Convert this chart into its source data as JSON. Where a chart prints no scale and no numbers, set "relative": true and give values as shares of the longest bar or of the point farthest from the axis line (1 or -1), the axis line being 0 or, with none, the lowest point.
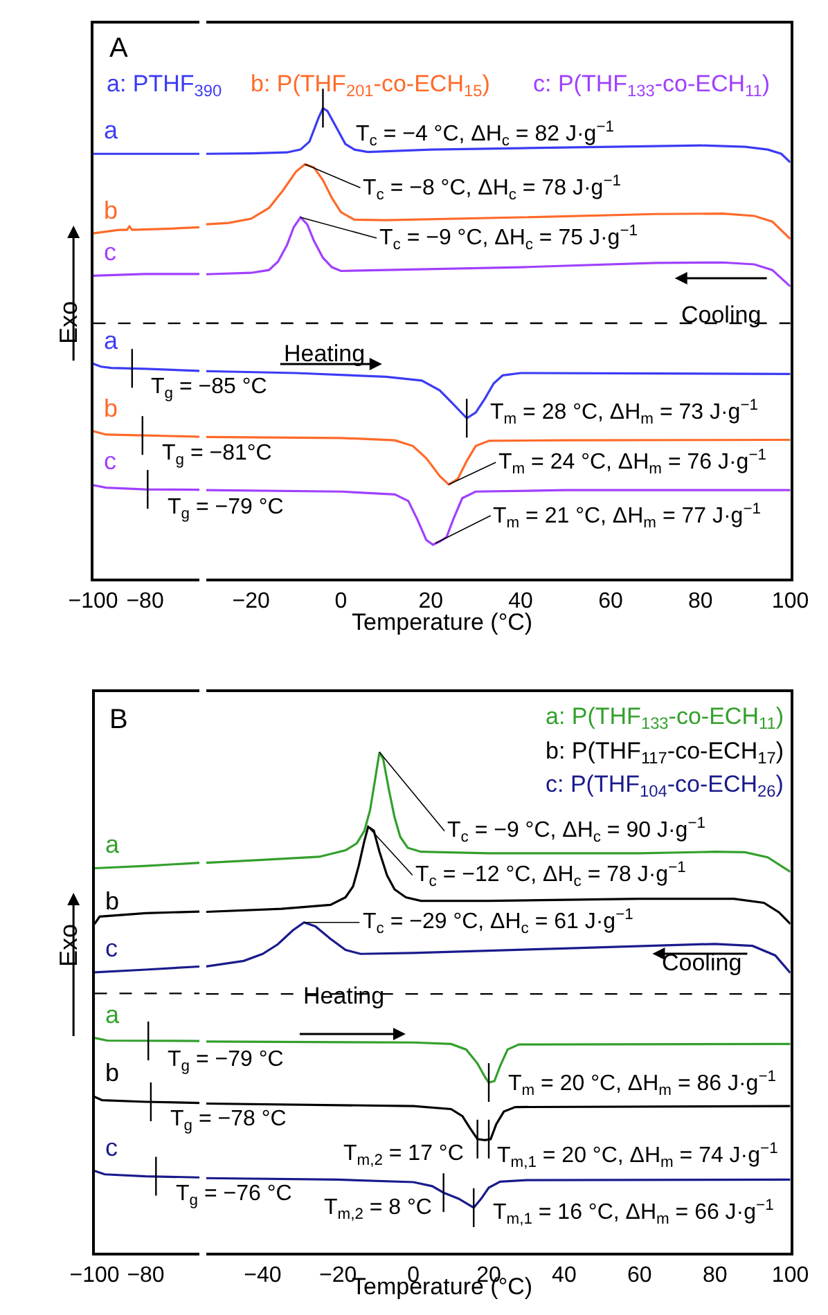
{
  "chart_data": [
    {
      "type": "line",
      "relative": true,
      "title": "A",
      "ylabel": "Exo",
      "xlim": [
        -100,
        -59
      ],
      "xticks": [
        -100,
        -80
      ],
      "tick_labels": "x",
      "ref_lines": [
        {
          "axis": "y",
          "value": 0.601,
          "color": "#000000",
          "line_style": "dashed"
        }
      ],
      "series": [
        {
          "name": "a",
          "color": "#3b3bf5",
          "x": [
            -100,
            -80,
            -59
          ],
          "values": [
            1.0,
            1.0,
            1.0
          ]
        },
        {
          "name": "b",
          "color": "#ff6a2a",
          "x": [
            -100,
            -90,
            -87,
            -86,
            -85,
            -70,
            -59
          ],
          "values": [
            0.813,
            0.821,
            0.821,
            0.829,
            0.821,
            0.824,
            0.827
          ]
        },
        {
          "name": "c",
          "color": "#a040ff",
          "x": [
            -100,
            -80,
            -59
          ],
          "values": [
            0.713,
            0.717,
            0.717
          ]
        },
        {
          "name": "a",
          "color": "#3b3bf5",
          "x": [
            -100,
            -97,
            -93,
            -80,
            -59
          ],
          "values": [
            0.506,
            0.499,
            0.496,
            0.494,
            0.489
          ]
        },
        {
          "name": "b",
          "color": "#ff6a2a",
          "x": [
            -100,
            -95,
            -80,
            -59
          ],
          "values": [
            0.347,
            0.339,
            0.337,
            0.334
          ]
        },
        {
          "name": "c",
          "color": "#a040ff",
          "x": [
            -100,
            -95,
            -80,
            -59
          ],
          "values": [
            0.22,
            0.214,
            0.21,
            0.209
          ]
        }
      ],
      "annotations": [
        {
          "text": "T$_{g}$ = −85 °C",
          "x": -85,
          "y": 0.495
        },
        {
          "text": "T$_{g}$ = −81°C",
          "x": -81,
          "y": 0.337
        },
        {
          "text": "T$_{g}$ = −79 °C",
          "x": -79,
          "y": 0.21
        }
      ]
    },
    {
      "type": "line",
      "relative": true,
      "xlabel": "Temperature (°C)",
      "xlim": [
        -30,
        100
      ],
      "xticks": [
        -20,
        0,
        20,
        40,
        60,
        80,
        100
      ],
      "tick_labels": "x",
      "ref_lines": [
        {
          "axis": "y",
          "value": 0.543,
          "color": "#000000",
          "line_style": "dashed"
        }
      ],
      "series": [
        {
          "color": "#3b3bf5",
          "x": [
            -30,
            -20,
            -12,
            -9,
            -7,
            -5,
            -4,
            -3,
            -1,
            1,
            3,
            6,
            20,
            40,
            60,
            80,
            90,
            95,
            98,
            100
          ],
          "values": [
            0.903,
            0.904,
            0.906,
            0.912,
            0.929,
            0.979,
            1.0,
            0.994,
            0.959,
            0.924,
            0.912,
            0.907,
            0.912,
            0.915,
            0.918,
            0.921,
            0.918,
            0.912,
            0.903,
            0.885
          ]
        },
        {
          "color": "#ff6a2a",
          "x": [
            -30,
            -25,
            -20,
            -16,
            -13,
            -10,
            -8,
            -6,
            -4,
            -2,
            0,
            3,
            10,
            40,
            70,
            85,
            92,
            96,
            100
          ],
          "values": [
            0.753,
            0.756,
            0.765,
            0.788,
            0.824,
            0.865,
            0.881,
            0.874,
            0.847,
            0.809,
            0.779,
            0.763,
            0.762,
            0.768,
            0.775,
            0.776,
            0.771,
            0.759,
            0.722
          ]
        },
        {
          "color": "#a040ff",
          "x": [
            -30,
            -20,
            -16,
            -14,
            -12,
            -10.5,
            -9,
            -7.5,
            -6,
            -4,
            -2,
            0,
            10,
            40,
            70,
            85,
            92,
            96,
            100
          ],
          "values": [
            0.647,
            0.65,
            0.656,
            0.674,
            0.709,
            0.747,
            0.768,
            0.753,
            0.718,
            0.682,
            0.662,
            0.654,
            0.656,
            0.662,
            0.671,
            0.672,
            0.668,
            0.656,
            0.621
          ]
        },
        {
          "color": "#3b3bf5",
          "x": [
            -30,
            -10,
            10,
            18,
            22,
            25,
            28,
            30,
            32,
            34,
            36,
            40,
            70,
            100
          ],
          "values": [
            0.441,
            0.437,
            0.429,
            0.421,
            0.4,
            0.371,
            0.341,
            0.353,
            0.382,
            0.415,
            0.432,
            0.437,
            0.436,
            0.435
          ]
        },
        {
          "color": "#ff6a2a",
          "x": [
            -30,
            0,
            12,
            16,
            19,
            22,
            24,
            26,
            28,
            30,
            33,
            50,
            100
          ],
          "values": [
            0.301,
            0.299,
            0.294,
            0.282,
            0.256,
            0.218,
            0.2,
            0.212,
            0.25,
            0.282,
            0.293,
            0.294,
            0.295
          ]
        },
        {
          "color": "#a040ff",
          "x": [
            -30,
            0,
            12,
            15,
            17,
            19,
            20.5,
            22,
            23.5,
            25,
            27,
            30,
            50,
            100
          ],
          "values": [
            0.188,
            0.185,
            0.179,
            0.165,
            0.126,
            0.082,
            0.072,
            0.079,
            0.088,
            0.126,
            0.171,
            0.185,
            0.188,
            0.188
          ]
        }
      ],
      "annotations": [
        "a: PTHF$_{390}$",
        "b: P(THF$_{201}$-co-ECH$_{15}$)",
        "c: P(THF$_{133}$-co-ECH$_{11}$)",
        "Cooling",
        "Heating",
        {
          "text": "T$_{c}$ = −4 °C, ΔH$_{c}$ = 82 J·g$^{−1}$",
          "x": -4,
          "y": 1.0
        },
        {
          "text": "T$_{c}$ = −8 °C, ΔH$_{c}$ = 78 J·g$^{−1}$",
          "x": -8,
          "y": 0.881
        },
        {
          "text": "T$_{c}$ = −9 °C, ΔH$_{c}$ = 75 J·g$^{−1}$",
          "x": -9,
          "y": 0.768
        },
        {
          "text": "T$_{m}$ = 28 °C, ΔH$_{m}$ = 73 J·g$^{−1}$",
          "x": 28,
          "y": 0.341
        },
        {
          "text": "T$_{m}$ = 24 °C, ΔH$_{m}$ = 76 J·g$^{−1}$",
          "x": 24,
          "y": 0.2
        },
        {
          "text": "T$_{m}$ = 21 °C, ΔH$_{m}$ = 77 J·g$^{−1}$",
          "x": 21,
          "y": 0.075
        }
      ]
    },
    {
      "type": "line",
      "relative": true,
      "title": "B",
      "ylabel": "Exo",
      "xlim": [
        -100,
        -59
      ],
      "xticks": [
        -100,
        -80
      ],
      "tick_labels": "x",
      "ref_lines": [
        {
          "axis": "y",
          "value": 0.665,
          "color": "#000000",
          "line_style": "dashed"
        }
      ],
      "series": [
        {
          "name": "a",
          "color": "#33a02c",
          "x": [
            -100,
            -80,
            -59
          ],
          "values": [
            0.986,
            0.992,
            1.0
          ]
        },
        {
          "name": "b",
          "color": "#000000",
          "x": [
            -100,
            -98,
            -80,
            -59
          ],
          "values": [
            0.843,
            0.862,
            0.871,
            0.875
          ]
        },
        {
          "name": "c",
          "color": "#1a1a8c",
          "x": [
            -100,
            -80,
            -59
          ],
          "values": [
            0.719,
            0.726,
            0.734
          ]
        },
        {
          "name": "a",
          "color": "#33a02c",
          "x": [
            -100,
            -95,
            -59
          ],
          "values": [
            0.551,
            0.544,
            0.543
          ]
        },
        {
          "name": "b",
          "color": "#000000",
          "x": [
            -100,
            -97,
            -80,
            -59
          ],
          "values": [
            0.4,
            0.391,
            0.387,
            0.384
          ]
        },
        {
          "name": "c",
          "color": "#1a1a8c",
          "x": [
            -100,
            -96,
            -80,
            -59
          ],
          "values": [
            0.21,
            0.201,
            0.196,
            0.193
          ]
        }
      ],
      "annotations": [
        {
          "text": "T$_{g}$ = −79 °C",
          "x": -79,
          "y": 0.543
        },
        {
          "text": "T$_{g}$ = −78 °C",
          "x": -78,
          "y": 0.387
        },
        {
          "text": "T$_{g}$ = −76 °C",
          "x": -76,
          "y": 0.196
        }
      ]
    },
    {
      "type": "line",
      "relative": true,
      "xlabel": "Temperature (°C)",
      "xlim": [
        -55,
        100
      ],
      "xticks": [
        -40,
        -20,
        0,
        20,
        40,
        60,
        80,
        100
      ],
      "tick_labels": "x",
      "ref_lines": [
        {
          "axis": "y",
          "value": 0.517,
          "color": "#000000",
          "line_style": "dashed"
        }
      ],
      "series": [
        {
          "color": "#33a02c",
          "x": [
            -55,
            -40,
            -25,
            -18,
            -15,
            -13,
            -11.5,
            -10,
            -9,
            -8,
            -6.5,
            -5,
            -3.5,
            -1.5,
            2,
            20,
            60,
            80,
            88,
            94,
            100
          ],
          "values": [
            0.779,
            0.785,
            0.791,
            0.804,
            0.818,
            0.843,
            0.884,
            0.953,
            1.0,
            0.986,
            0.925,
            0.87,
            0.831,
            0.809,
            0.801,
            0.798,
            0.798,
            0.801,
            0.8,
            0.79,
            0.761
          ]
        },
        {
          "color": "#000000",
          "x": [
            -55,
            -35,
            -22,
            -18,
            -16,
            -14.5,
            -13,
            -12,
            -10.5,
            -9,
            -7,
            -5,
            -2,
            2,
            20,
            60,
            85,
            93,
            97,
            100
          ],
          "values": [
            0.681,
            0.687,
            0.695,
            0.71,
            0.732,
            0.773,
            0.823,
            0.851,
            0.843,
            0.801,
            0.754,
            0.726,
            0.71,
            0.703,
            0.703,
            0.707,
            0.707,
            0.699,
            0.68,
            0.657
          ]
        },
        {
          "color": "#1a1a8c",
          "x": [
            -55,
            -45,
            -40,
            -36,
            -32,
            -29,
            -26,
            -22,
            -18,
            -14,
            0,
            40,
            80,
            90,
            96,
            100
          ],
          "values": [
            0.572,
            0.583,
            0.597,
            0.616,
            0.644,
            0.66,
            0.652,
            0.627,
            0.605,
            0.597,
            0.599,
            0.608,
            0.617,
            0.613,
            0.594,
            0.559
          ]
        },
        {
          "color": "#33a02c",
          "x": [
            -55,
            0,
            10,
            14,
            17,
            19,
            20,
            21.5,
            23,
            25,
            28,
            100
          ],
          "values": [
            0.422,
            0.42,
            0.417,
            0.406,
            0.378,
            0.351,
            0.34,
            0.343,
            0.373,
            0.406,
            0.416,
            0.417
          ]
        },
        {
          "color": "#000000",
          "x": [
            -55,
            0,
            10,
            13,
            15,
            17,
            19,
            20.5,
            22,
            24,
            27,
            100
          ],
          "values": [
            0.298,
            0.293,
            0.287,
            0.273,
            0.249,
            0.227,
            0.225,
            0.227,
            0.257,
            0.282,
            0.291,
            0.293
          ]
        },
        {
          "color": "#1a1a8c",
          "x": [
            -55,
            -20,
            0,
            5,
            8,
            12,
            16,
            18,
            20,
            23,
            30,
            100
          ],
          "values": [
            0.149,
            0.146,
            0.141,
            0.133,
            0.12,
            0.108,
            0.09,
            0.108,
            0.13,
            0.142,
            0.145,
            0.146
          ]
        }
      ],
      "annotations": [
        "a: P(THF$_{133}$-co-ECH$_{11}$)",
        "b: P(THF$_{117}$-co-ECH$_{17}$)",
        "c: P(THF$_{104}$-co-ECH$_{26}$)",
        "Cooling",
        "Heating",
        {
          "text": "T$_{c}$ = −9 °C, ΔH$_{c}$ = 90 J·g$^{−1}$",
          "x": -9,
          "y": 1.0
        },
        {
          "text": "T$_{c}$ = −12 °C, ΔH$_{c}$ = 78 J·g$^{−1}$",
          "x": -12,
          "y": 0.851
        },
        {
          "text": "T$_{c}$ = −29 °C, ΔH$_{c}$ = 61 J·g$^{−1}$",
          "x": -29,
          "y": 0.66
        },
        {
          "text": "T$_{m}$ = 20 °C, ΔH$_{m}$ = 86 J·g$^{−1}$",
          "x": 20,
          "y": 0.34
        },
        {
          "text": "T$_{m,2}$ = 17 °C",
          "x": 17,
          "y": 0.227
        },
        {
          "text": "T$_{m,1}$ = 20 °C, ΔH$_{m}$ = 74 J·g$^{−1}$",
          "x": 20,
          "y": 0.227
        },
        {
          "text": "T$_{m,2}$ = 8 °C",
          "x": 8,
          "y": 0.12
        },
        {
          "text": "T$_{m,1}$ = 16 °C, ΔH$_{m}$ = 66 J·g$^{−1}$",
          "x": 16,
          "y": 0.09
        }
      ]
    }
  ]
}
